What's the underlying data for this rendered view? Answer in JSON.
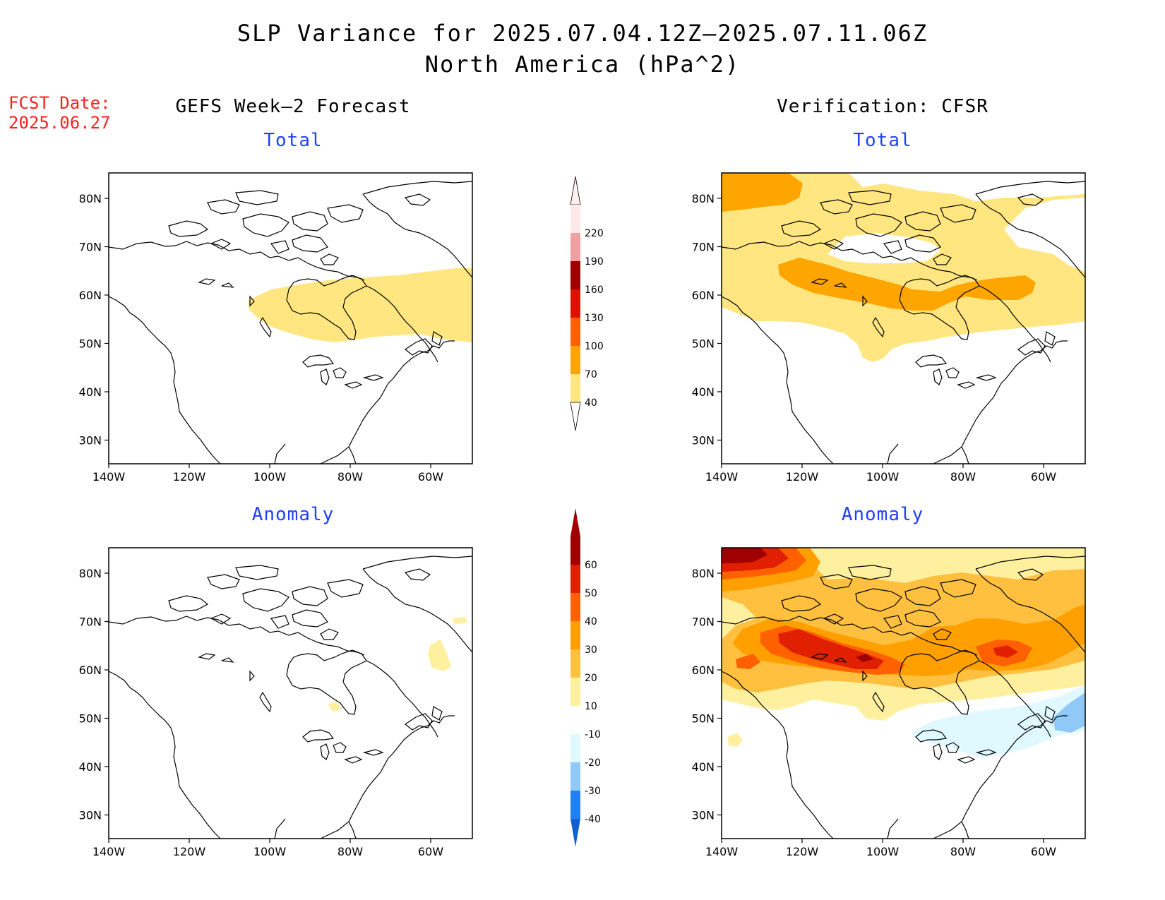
{
  "title": {
    "line1": "SLP Variance for 2025.07.04.12Z–2025.07.11.06Z",
    "line2": "North America (hPa^2)"
  },
  "fcst_date": {
    "label": "FCST Date:",
    "value": "2025.06.27"
  },
  "columns": {
    "left": "GEFS Week–2 Forecast",
    "right": "Verification: CFSR"
  },
  "panels": {
    "top_left": "Total",
    "top_right": "Total",
    "bottom_left": "Anomaly",
    "bottom_right": "Anomaly"
  },
  "axes": {
    "lat_labels": [
      "80N",
      "70N",
      "60N",
      "50N",
      "40N",
      "30N"
    ],
    "lon_labels": [
      "140W",
      "120W",
      "100W",
      "80W",
      "60W"
    ]
  },
  "colorbar_total": {
    "levels": [
      "40",
      "70",
      "100",
      "130",
      "160",
      "190",
      "220"
    ],
    "colors": [
      "#ffe680",
      "#ffa500",
      "#ff6000",
      "#e01000",
      "#a00000",
      "#f0a0a0",
      "#ffe8e8"
    ]
  },
  "colorbar_anomaly": {
    "levels": [
      "-40",
      "-30",
      "-20",
      "-10",
      "10",
      "20",
      "30",
      "40",
      "50",
      "60"
    ],
    "colors_low": [
      "#1060d0",
      "#2080f0",
      "#90c8f8",
      "#e0f8ff"
    ],
    "color_mid": "#ffffff",
    "colors_high": [
      "#fff0a0",
      "#ffc040",
      "#ffa000",
      "#ff6000",
      "#e02000",
      "#a00000"
    ]
  }
}
